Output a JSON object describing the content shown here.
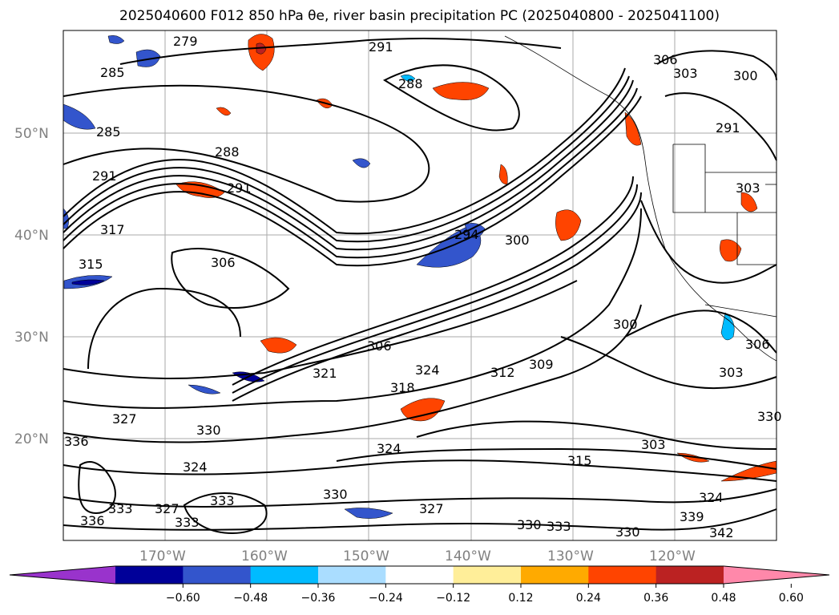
{
  "title": "2025040600 F012 850 hPa θe, river basin precipitation PC (2025040800 - 2025041100)",
  "map": {
    "lat_labels": [
      "50°N",
      "40°N",
      "30°N",
      "20°N"
    ],
    "lon_labels": [
      "170°W",
      "160°W",
      "150°W",
      "140°W",
      "130°W",
      "120°W"
    ],
    "contour_labels": [
      "279",
      "291",
      "285",
      "288",
      "306",
      "303",
      "300",
      "285",
      "291",
      "288",
      "291",
      "317",
      "294",
      "300",
      "315",
      "306",
      "291",
      "300",
      "306",
      "321",
      "324",
      "312",
      "309",
      "318",
      "303",
      "327",
      "330",
      "324",
      "336",
      "330",
      "324",
      "315",
      "303",
      "330",
      "336",
      "333",
      "327",
      "333",
      "327",
      "330",
      "333",
      "330",
      "339",
      "324",
      "342",
      "333",
      "306",
      "303"
    ]
  },
  "colorbar": {
    "ticks": [
      "−0.60",
      "−0.48",
      "−0.36",
      "−0.24",
      "−0.12",
      "0.12",
      "0.24",
      "0.36",
      "0.48",
      "0.60"
    ],
    "colors": [
      "#9933cc",
      "#000099",
      "#3355cc",
      "#00bbff",
      "#aaddff",
      "#ffffff",
      "#ffee99",
      "#ffaa00",
      "#ff4400",
      "#bb2222",
      "#ff88aa"
    ]
  }
}
